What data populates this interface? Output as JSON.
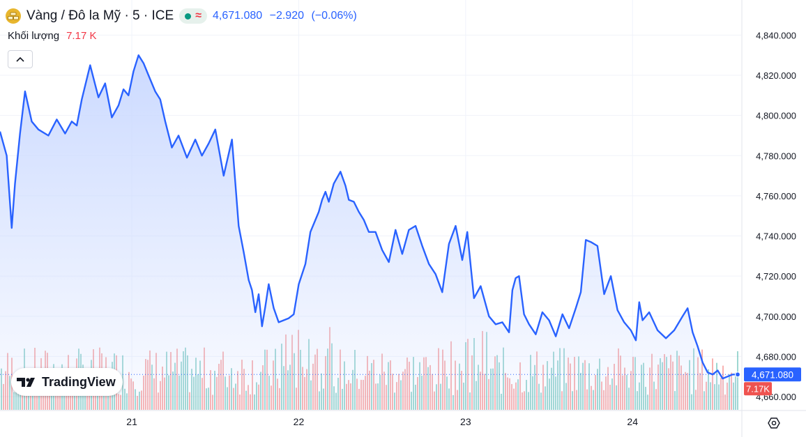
{
  "header": {
    "title": "Vàng / Đô la Mỹ · 5 · ICE",
    "symbol_icon": "gold-bars-icon",
    "market_status_icon": "market-open-dot-icon",
    "data_status_icon": "delayed-data-approx-icon",
    "price": "4,671.080",
    "change": "−2.920",
    "change_pct": "(−0.06%)"
  },
  "volume": {
    "label": "Khối lượng",
    "value": "7.17 K"
  },
  "colors": {
    "line": "#2962ff",
    "area_top": "#c9d8ff",
    "volume_up": "#26a69a",
    "volume_down": "#ef5350",
    "price_badge": "#2962ff",
    "volume_badge": "#ef5350"
  },
  "watermark": {
    "text": "TradingView",
    "icon": "tradingview-logo-icon"
  },
  "chart_data": {
    "type": "area",
    "title": "",
    "ylim": [
      4660,
      4845
    ],
    "y_ticks": [
      "4,660.000",
      "4,680.000",
      "4,700.000",
      "4,720.000",
      "4,740.000",
      "4,760.000",
      "4,780.000",
      "4,800.000",
      "4,820.000",
      "4,840.000"
    ],
    "x_ticks": [
      "21",
      "22",
      "23",
      "24"
    ],
    "x_tick_days": [
      21,
      22,
      23,
      24
    ],
    "x_range_days": [
      20.21,
      24.63
    ],
    "grid": true,
    "last_price_label": "4,671.080",
    "last_volume_label": "7.17 K",
    "series": [
      {
        "x_days": [
          20.21,
          20.25,
          20.28,
          20.3,
          20.33,
          20.36,
          20.4,
          20.44,
          20.5,
          20.55,
          20.6,
          20.64,
          20.67,
          20.7,
          20.75,
          20.8,
          20.84,
          20.88,
          20.92,
          20.95,
          20.98,
          21.01,
          21.04,
          21.07,
          21.1,
          21.14,
          21.17,
          21.2,
          21.24,
          21.28,
          21.33,
          21.38,
          21.42,
          21.46,
          21.5,
          21.55,
          21.6,
          21.64,
          21.67,
          21.7,
          21.72,
          21.74,
          21.76,
          21.78,
          21.8,
          21.82,
          21.85,
          21.88,
          21.91,
          21.94,
          21.97,
          22.0,
          22.04,
          22.07,
          22.1,
          22.12,
          22.14,
          22.16,
          22.18,
          22.21,
          22.25,
          22.28,
          22.3,
          22.33,
          22.36,
          22.39,
          22.42,
          22.46,
          22.5,
          22.54,
          22.58,
          22.62,
          22.66,
          22.7,
          22.74,
          22.78,
          22.82,
          22.86,
          22.9,
          22.94,
          22.98,
          23.01,
          23.05,
          23.09,
          23.14,
          23.18,
          23.22,
          23.26,
          23.28,
          23.3,
          23.32,
          23.35,
          23.38,
          23.42,
          23.46,
          23.5,
          23.54,
          23.58,
          23.62,
          23.66,
          23.69,
          23.72,
          23.75,
          23.79,
          23.83,
          23.87,
          23.91,
          23.95,
          23.99,
          24.02,
          24.04,
          24.06,
          24.1,
          24.15,
          24.2,
          24.25,
          24.3,
          24.33,
          24.36,
          24.39,
          24.42,
          24.45,
          24.48,
          24.51,
          24.54,
          24.57,
          24.6,
          24.63
        ],
        "values": [
          4792,
          4780,
          4744,
          4766,
          4791,
          4812,
          4797,
          4793,
          4790,
          4798,
          4791,
          4797,
          4795,
          4808,
          4825,
          4809,
          4816,
          4799,
          4805,
          4813,
          4810,
          4822,
          4830,
          4826,
          4820,
          4812,
          4808,
          4797,
          4784,
          4790,
          4779,
          4788,
          4780,
          4786,
          4793,
          4770,
          4788,
          4745,
          4732,
          4718,
          4713,
          4702,
          4711,
          4695,
          4705,
          4716,
          4704,
          4697,
          4698,
          4699,
          4701,
          4716,
          4726,
          4742,
          4748,
          4752,
          4758,
          4762,
          4757,
          4766,
          4772,
          4765,
          4758,
          4757,
          4752,
          4748,
          4742,
          4742,
          4733,
          4727,
          4743,
          4731,
          4743,
          4745,
          4735,
          4726,
          4721,
          4712,
          4736,
          4745,
          4728,
          4742,
          4709,
          4715,
          4700,
          4696,
          4697,
          4692,
          4713,
          4719,
          4720,
          4701,
          4696,
          4691,
          4702,
          4698,
          4690,
          4701,
          4694,
          4704,
          4712,
          4738,
          4737,
          4735,
          4711,
          4720,
          4703,
          4697,
          4693,
          4688,
          4707,
          4698,
          4702,
          4693,
          4689,
          4693,
          4700,
          4704,
          4692,
          4685,
          4677,
          4672,
          4671,
          4673,
          4669,
          4670,
          4671,
          4671
        ]
      }
    ]
  }
}
